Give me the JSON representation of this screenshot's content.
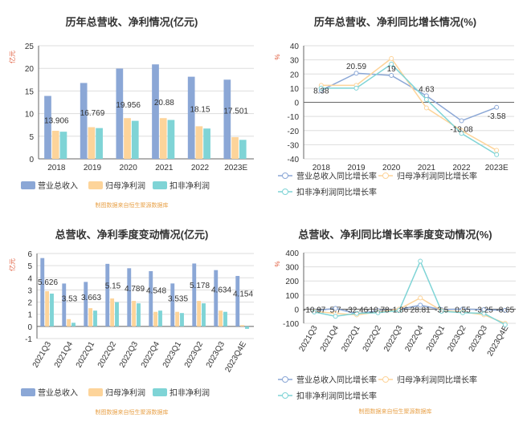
{
  "colors": {
    "blue": "#8ba7d6",
    "orange": "#fdd49a",
    "teal": "#7fd4d6",
    "axis": "#666666",
    "grid": "#dddddd",
    "label": "#333333",
    "unit": "#e05a3a",
    "source": "#e8a24a"
  },
  "chart_data": [
    {
      "type": "bar",
      "title": "历年总营收、净利情况(亿元)",
      "unit_label": "亿元",
      "source": "制图数据来自恒生聚源数据库",
      "categories": [
        "2018",
        "2019",
        "2020",
        "2021",
        "2022",
        "2023E"
      ],
      "ylim": [
        0,
        25
      ],
      "yticks": [
        0,
        5,
        10,
        15,
        20,
        25
      ],
      "legend": "bottom",
      "series": [
        {
          "name": "营业总收入",
          "values": [
            13.906,
            16.769,
            19.956,
            20.88,
            18.15,
            17.501
          ]
        },
        {
          "name": "归母净利润",
          "values": [
            6.2,
            7.0,
            9.0,
            9.0,
            7.2,
            4.8
          ]
        },
        {
          "name": "扣非净利润",
          "values": [
            6.0,
            6.8,
            8.4,
            8.6,
            6.7,
            4.2
          ]
        }
      ],
      "data_labels": [
        "13.906",
        "16.769",
        "19.956",
        "20.88",
        "18.15",
        "17.501"
      ]
    },
    {
      "type": "line",
      "title": "历年总营收、净利同比增长情况(%)",
      "unit_label": "%",
      "source": "",
      "categories": [
        "2018",
        "2019",
        "2020",
        "2021",
        "2022",
        "2023E"
      ],
      "ylim": [
        -40,
        40
      ],
      "yticks": [
        -40,
        -30,
        -20,
        -10,
        0,
        10,
        20,
        30,
        40
      ],
      "legend": "bottom",
      "series": [
        {
          "name": "营业总收入同比增长率",
          "values": [
            8.38,
            20.59,
            19,
            4.63,
            -13.08,
            -3.58
          ]
        },
        {
          "name": "归母净利润同比增长率",
          "values": [
            12,
            12,
            31,
            -4,
            -20,
            -34
          ]
        },
        {
          "name": "扣非净利润同比增长率",
          "values": [
            10,
            10,
            27,
            2,
            -22,
            -37
          ]
        }
      ],
      "data_labels": [
        "8.38",
        "20.59",
        "19",
        "4.63",
        "-13.08",
        "-3.58"
      ]
    },
    {
      "type": "bar",
      "title": "总营收、净利季度变动情况(亿元)",
      "unit_label": "亿元",
      "source": "制图数据来自恒生聚源数据库",
      "categories": [
        "2021Q3",
        "2021Q4",
        "2022Q1",
        "2022Q2",
        "2022Q3",
        "2022Q4",
        "2023Q1",
        "2023Q2",
        "2023Q3",
        "2023Q4E"
      ],
      "ylim": [
        -1,
        6
      ],
      "yticks": [
        -1,
        0,
        1,
        2,
        3,
        4,
        5,
        6
      ],
      "legend": "bottom",
      "series": [
        {
          "name": "营业总收入",
          "values": [
            5.626,
            3.53,
            3.663,
            5.15,
            4.789,
            4.548,
            3.535,
            5.178,
            4.634,
            4.154
          ]
        },
        {
          "name": "归母净利润",
          "values": [
            2.9,
            0.6,
            1.5,
            2.3,
            2.1,
            1.2,
            1.2,
            2.1,
            1.3,
            0.1
          ]
        },
        {
          "name": "扣非净利润",
          "values": [
            2.7,
            0.3,
            1.3,
            2.0,
            1.9,
            1.3,
            1.1,
            1.9,
            1.2,
            -0.2
          ]
        }
      ],
      "data_labels": [
        "5.626",
        "3.53",
        "3.663",
        "5.15",
        "4.789",
        "4.548",
        "3.535",
        "5.178",
        "4.634",
        "4.154"
      ]
    },
    {
      "type": "line",
      "title": "总营收、净利同比增长率季度变动情况(%)",
      "unit_label": "%",
      "source": "制图数据来自恒生聚源数据库",
      "categories": [
        "2021Q3",
        "2021Q4",
        "2022Q1",
        "2022Q2",
        "2022Q3",
        "2022Q4",
        "2023Q1",
        "2023Q2",
        "2023Q3",
        "2023Q4E"
      ],
      "ylim": [
        -100,
        400
      ],
      "yticks": [
        -100,
        0,
        100,
        200,
        300,
        400
      ],
      "legend": "bottom",
      "series": [
        {
          "name": "营业总收入同比增长率",
          "values": [
            -10.97,
            5.7,
            -32.46,
            -10.78,
            -1.86,
            28.81,
            -3.5,
            0.55,
            -3.25,
            -8.65
          ]
        },
        {
          "name": "归母净利润同比增长率",
          "values": [
            -15,
            -30,
            -40,
            -20,
            0,
            80,
            -10,
            -20,
            -40,
            -100
          ]
        },
        {
          "name": "扣非净利润同比增长率",
          "values": [
            -20,
            -50,
            -30,
            -25,
            -10,
            340,
            -15,
            -25,
            -30,
            -110
          ]
        }
      ],
      "data_labels": [
        "-10.97",
        "5.7",
        "-32.46",
        "-10.78",
        "-1.86",
        "28.81",
        "-3.5",
        "0.55",
        "-3.25",
        "-8.65"
      ]
    }
  ]
}
